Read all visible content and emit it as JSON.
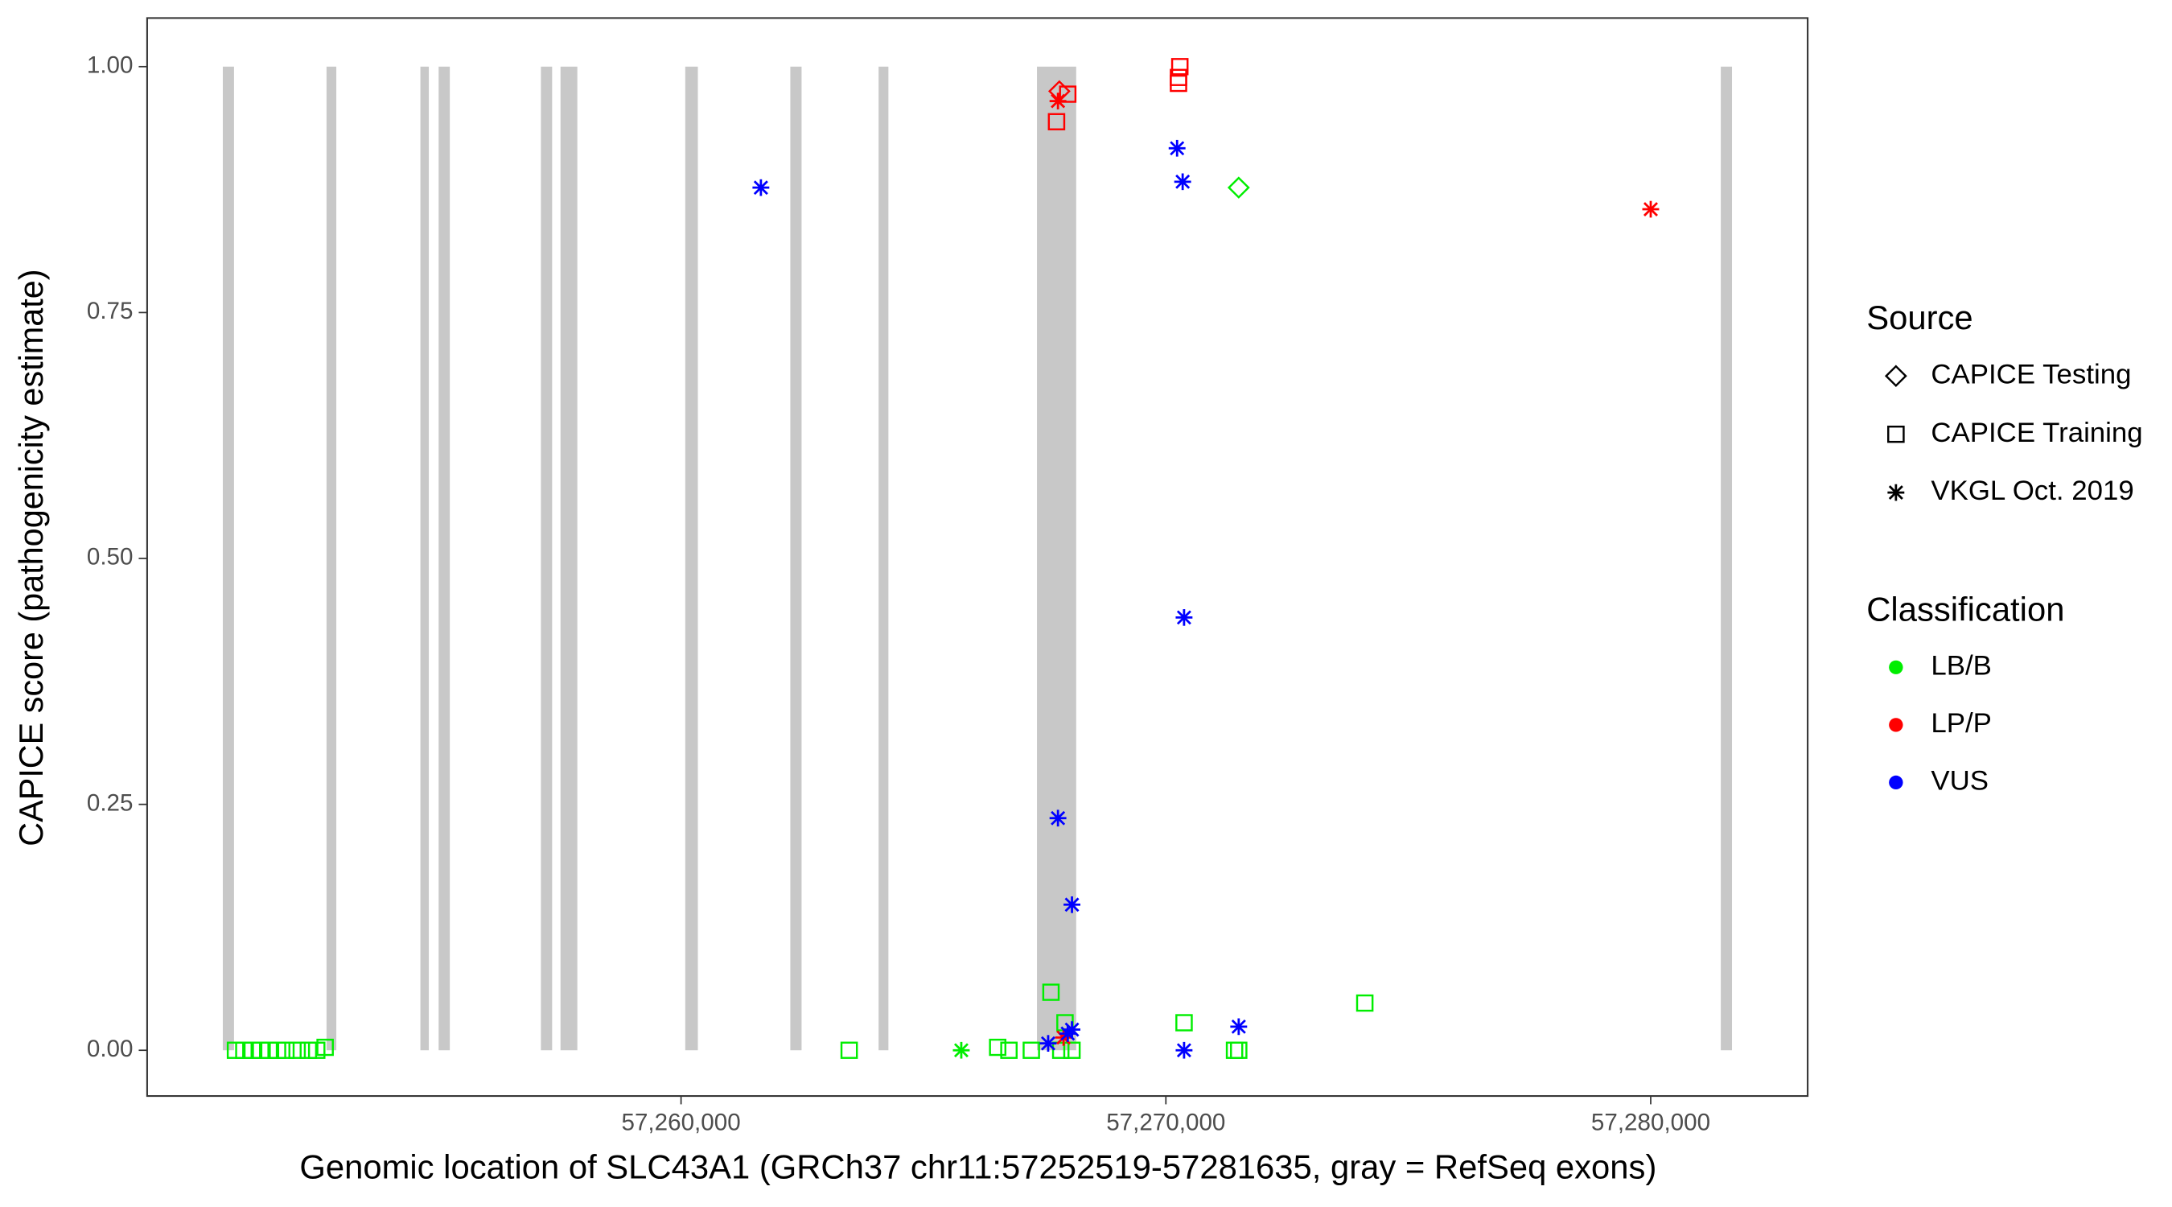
{
  "chart_data": {
    "type": "scatter",
    "x_label": "Genomic location of SLC43A1 (GRCh37 chr11:57252519-57281635, gray = RefSeq exons)",
    "y_label": "CAPICE score (pathogenicity estimate)",
    "xlim": [
      57248988,
      57283237
    ],
    "ylim": [
      -0.0465,
      1.0494
    ],
    "xticks": [
      {
        "value": 57260000,
        "label": "57,260,000"
      },
      {
        "value": 57270000,
        "label": "57,270,000"
      },
      {
        "value": 57280000,
        "label": "57,280,000"
      }
    ],
    "yticks": [
      {
        "value": 0,
        "label": "0.00"
      },
      {
        "value": 0.25,
        "label": "0.25"
      },
      {
        "value": 0.5,
        "label": "0.50"
      },
      {
        "value": 0.75,
        "label": "0.75"
      },
      {
        "value": 1,
        "label": "1.00"
      }
    ],
    "exons": [
      [
        57250549,
        57250780
      ],
      [
        57252688,
        57252890
      ],
      [
        57254624,
        57254798
      ],
      [
        57255000,
        57255231
      ],
      [
        57257110,
        57257341
      ],
      [
        57257514,
        57257861
      ],
      [
        57260087,
        57260347
      ],
      [
        57262254,
        57262486
      ],
      [
        57264075,
        57264277
      ],
      [
        57267341,
        57268150
      ],
      [
        57281445,
        57281676
      ]
    ],
    "exon_color": "#c8c8c8",
    "source_legend": {
      "title": "Source",
      "items": [
        {
          "name": "CAPICE Testing",
          "shape": "diamond"
        },
        {
          "name": "CAPICE Training",
          "shape": "square"
        },
        {
          "name": "VKGL Oct. 2019",
          "shape": "star"
        }
      ]
    },
    "class_legend": {
      "title": "Classification",
      "items": [
        {
          "name": "LB/B",
          "color": "#00ee00"
        },
        {
          "name": "LP/P",
          "color": "#ff0000"
        },
        {
          "name": "VUS",
          "color": "#0000ff"
        }
      ]
    },
    "series": [
      {
        "source": "CAPICE Training",
        "classification": "LB/B",
        "x": [
          57250810,
          57250983,
          57251157,
          57251330,
          57251503,
          57251677,
          57251850,
          57252081,
          57252313,
          57252486,
          57252659,
          57263468,
          57266531,
          57266763,
          57267225,
          57267630,
          57267919,
          57267832,
          57268063,
          57270375,
          57271416,
          57271502,
          57274103
        ],
        "values": [
          0,
          0,
          0,
          0,
          0,
          0,
          0,
          0,
          0,
          0,
          0.003,
          0,
          0.003,
          0,
          0,
          0.059,
          0.028,
          0,
          0,
          0.028,
          0,
          0,
          0.048
        ]
      },
      {
        "source": "VKGL Oct. 2019",
        "classification": "LB/B",
        "x": [
          57265780
        ],
        "values": [
          0
        ]
      },
      {
        "source": "CAPICE Testing",
        "classification": "LB/B",
        "x": [
          57271502
        ],
        "values": [
          0.877
        ]
      },
      {
        "source": "CAPICE Training",
        "classification": "LP/P",
        "x": [
          57267745,
          57267976,
          57270288,
          57270260,
          57270260
        ],
        "values": [
          0.944,
          0.972,
          1.0,
          0.989,
          0.983
        ]
      },
      {
        "source": "CAPICE Testing",
        "classification": "LP/P",
        "x": [
          57267803
        ],
        "values": [
          0.975
        ]
      },
      {
        "source": "VKGL Oct. 2019",
        "classification": "LP/P",
        "x": [
          57267774,
          57267890,
          57280000
        ],
        "values": [
          0.965,
          0.013,
          0.855
        ]
      },
      {
        "source": "VKGL Oct. 2019",
        "classification": "VUS",
        "x": [
          57261647,
          57270231,
          57270346,
          57270375,
          57267774,
          57268063,
          57268063,
          57267976,
          57267572,
          57270375,
          57271502
        ],
        "values": [
          0.877,
          0.917,
          0.883,
          0.44,
          0.236,
          0.148,
          0.021,
          0.017,
          0.007,
          0,
          0.024
        ]
      }
    ]
  }
}
